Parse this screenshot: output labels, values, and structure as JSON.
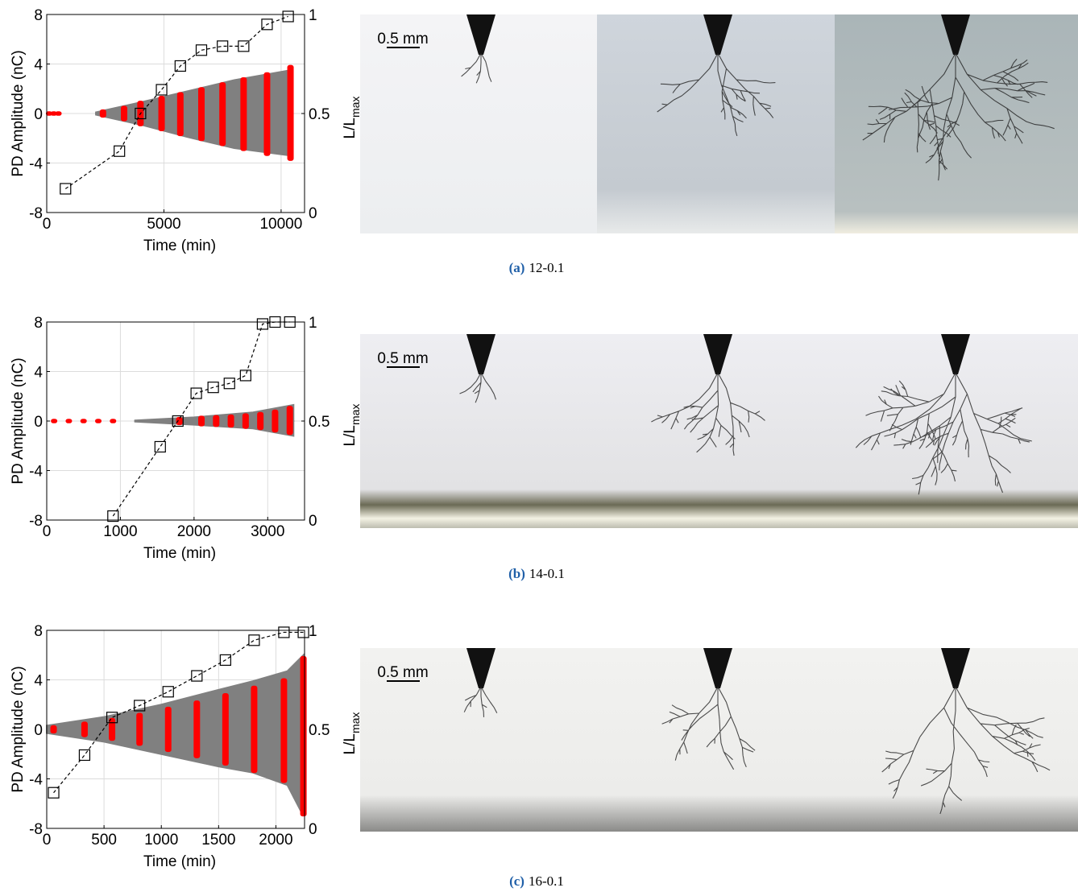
{
  "chart_data": [
    {
      "type": "scatter",
      "xlabel": "Time (min)",
      "ylabel": "PD Amplitude (nC)",
      "y2label": {
        "text": "L/L",
        "subscript": "max"
      },
      "xlim": [
        0,
        11000
      ],
      "xticks": [
        0,
        5000,
        10000
      ],
      "ylim": [
        -8,
        8
      ],
      "yticks": [
        -8,
        -4,
        0,
        4,
        8
      ],
      "y2lim": [
        0,
        1
      ],
      "y2ticks": [
        0,
        0.5,
        1
      ],
      "grid": true,
      "envelope": {
        "color": "#808080",
        "x": [
          2100,
          4000,
          6000,
          8000,
          10400
        ],
        "upper": [
          0.1,
          0.9,
          1.8,
          2.7,
          3.5
        ],
        "lower": [
          -0.1,
          -0.9,
          -1.9,
          -2.8,
          -3.4
        ]
      },
      "pulses": {
        "color": "#ff0000",
        "x": [
          100,
          300,
          500,
          2400,
          3300,
          4000,
          4900,
          5700,
          6600,
          7500,
          8400,
          9400,
          10400
        ],
        "upper": [
          0.05,
          0.05,
          0.05,
          0.2,
          0.5,
          0.9,
          1.3,
          1.6,
          2.0,
          2.4,
          2.8,
          3.2,
          3.8
        ],
        "lower": [
          -0.05,
          -0.05,
          -0.05,
          -0.2,
          -0.5,
          -0.9,
          -1.3,
          -1.7,
          -2.1,
          -2.5,
          -2.9,
          -3.3,
          -3.7
        ]
      },
      "series": [
        {
          "axis": "y2",
          "color": "#000000",
          "x": [
            800,
            3100,
            4000,
            4900,
            5700,
            6600,
            7500,
            8400,
            9400,
            10300
          ],
          "values": [
            0.12,
            0.31,
            0.5,
            0.62,
            0.74,
            0.82,
            0.84,
            0.84,
            0.95,
            0.99
          ]
        }
      ],
      "scale_bar": "0.5 mm",
      "caption": {
        "label": "(a)",
        "text": "12-0.1"
      }
    },
    {
      "type": "scatter",
      "xlabel": "Time (min)",
      "ylabel": "PD Amplitude (nC)",
      "y2label": {
        "text": "L/L",
        "subscript": "max"
      },
      "xlim": [
        0,
        3500
      ],
      "xticks": [
        0,
        1000,
        2000,
        3000
      ],
      "ylim": [
        -8,
        8
      ],
      "yticks": [
        -8,
        -4,
        0,
        4,
        8
      ],
      "y2lim": [
        0,
        1
      ],
      "y2ticks": [
        0,
        0.5,
        1
      ],
      "grid": true,
      "envelope": {
        "color": "#808080",
        "x": [
          1200,
          2000,
          2800,
          3350
        ],
        "upper": [
          0.05,
          0.3,
          0.7,
          1.3
        ],
        "lower": [
          -0.05,
          -0.3,
          -0.6,
          -1.2
        ]
      },
      "pulses": {
        "color": "#ff0000",
        "x": [
          100,
          300,
          500,
          700,
          900,
          1800,
          2100,
          2300,
          2500,
          2700,
          2900,
          3100,
          3300
        ],
        "upper": [
          0.05,
          0.05,
          0.05,
          0.05,
          0.05,
          0.2,
          0.3,
          0.35,
          0.4,
          0.5,
          0.6,
          0.8,
          1.1
        ],
        "lower": [
          -0.05,
          -0.05,
          -0.05,
          -0.05,
          -0.05,
          -0.2,
          -0.3,
          -0.35,
          -0.4,
          -0.5,
          -0.6,
          -0.8,
          -1.0
        ]
      },
      "series": [
        {
          "axis": "y2",
          "color": "#000000",
          "x": [
            900,
            1540,
            1780,
            2030,
            2260,
            2480,
            2700,
            2930,
            3100,
            3300
          ],
          "values": [
            0.02,
            0.37,
            0.5,
            0.64,
            0.67,
            0.69,
            0.73,
            0.99,
            1,
            1
          ]
        }
      ],
      "scale_bar": "0.5 mm",
      "caption": {
        "label": "(b)",
        "text": "14-0.1"
      }
    },
    {
      "type": "scatter",
      "xlabel": "Time (min)",
      "ylabel": "PD Amplitude (nC)",
      "y2label": {
        "text": "L/L",
        "subscript": "max"
      },
      "xlim": [
        0,
        2250
      ],
      "xticks": [
        0,
        500,
        1000,
        1500,
        2000
      ],
      "ylim": [
        -8,
        8
      ],
      "yticks": [
        -8,
        -4,
        0,
        4,
        8
      ],
      "y2lim": [
        0,
        1
      ],
      "y2ticks": [
        0,
        0.5,
        1
      ],
      "grid": true,
      "envelope": {
        "color": "#808080",
        "x": [
          0,
          500,
          1000,
          1500,
          1800,
          2100,
          2240
        ],
        "upper": [
          0.3,
          1.0,
          2.0,
          3.2,
          3.9,
          4.7,
          6.0
        ],
        "lower": [
          -0.3,
          -1.0,
          -2.0,
          -3.0,
          -3.5,
          -4.5,
          -7.0
        ]
      },
      "pulses": {
        "color": "#ff0000",
        "x": [
          60,
          330,
          570,
          810,
          1060,
          1310,
          1560,
          1810,
          2070,
          2240
        ],
        "upper": [
          0.2,
          0.5,
          0.8,
          1.2,
          1.7,
          2.2,
          2.8,
          3.4,
          4.0,
          5.8
        ],
        "lower": [
          -0.2,
          -0.5,
          -0.8,
          -1.2,
          -1.7,
          -2.2,
          -2.8,
          -3.4,
          -4.2,
          -6.9
        ]
      },
      "series": [
        {
          "axis": "y2",
          "color": "#000000",
          "x": [
            60,
            330,
            570,
            810,
            1060,
            1310,
            1560,
            1810,
            2070,
            2240
          ],
          "values": [
            0.18,
            0.37,
            0.56,
            0.62,
            0.69,
            0.77,
            0.85,
            0.95,
            0.99,
            0.99
          ]
        }
      ],
      "scale_bar": "0.5 mm",
      "caption": {
        "label": "(c)",
        "text": "16-0.1"
      }
    }
  ]
}
